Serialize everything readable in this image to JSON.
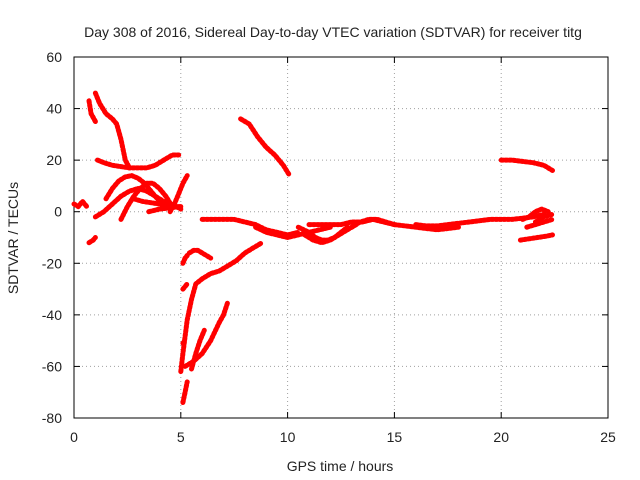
{
  "chart_data": {
    "type": "scatter",
    "title": "Day 308 of 2016, Sidereal Day-to-day VTEC variation (SDTVAR) for receiver titg",
    "xlabel": "GPS time / hours",
    "ylabel": "SDTVAR / TECUs",
    "xlim": [
      0,
      25
    ],
    "ylim": [
      -80,
      60
    ],
    "xticks": [
      0,
      5,
      10,
      15,
      20,
      25
    ],
    "yticks": [
      -80,
      -60,
      -40,
      -20,
      0,
      20,
      40,
      60
    ],
    "grid": true,
    "legend": "none",
    "marker_color": "#ff0000",
    "series": [
      {
        "x": [
          0.0,
          0.2,
          0.4,
          0.6
        ],
        "y": [
          3,
          2,
          4,
          2
        ]
      },
      {
        "x": [
          0.7,
          0.9,
          1.0
        ],
        "y": [
          -12,
          -11,
          -10
        ]
      },
      {
        "x": [
          0.7,
          0.8,
          1.0
        ],
        "y": [
          43,
          38,
          35
        ]
      },
      {
        "x": [
          1.0,
          1.2,
          1.5,
          1.8,
          2.0,
          2.2,
          2.4,
          2.6
        ],
        "y": [
          46,
          42,
          38,
          36,
          34,
          28,
          20,
          17
        ]
      },
      {
        "x": [
          1.1,
          1.4,
          1.8,
          2.2,
          2.6,
          3.0,
          3.4,
          3.8,
          4.2,
          4.6,
          4.9
        ],
        "y": [
          20,
          19,
          18,
          17.5,
          17,
          17,
          17,
          18,
          20,
          22,
          22
        ]
      },
      {
        "x": [
          1.0,
          1.4,
          1.8,
          2.2,
          2.6,
          3.0,
          3.4,
          3.8,
          4.2,
          4.6,
          5.0
        ],
        "y": [
          -2,
          0,
          3,
          6,
          8,
          9,
          8,
          6,
          4,
          2,
          2
        ]
      },
      {
        "x": [
          1.5,
          1.8,
          2.1,
          2.4,
          2.7,
          3.0,
          3.3,
          3.6,
          3.9,
          4.2,
          4.5
        ],
        "y": [
          5,
          9,
          12,
          13.5,
          14,
          13,
          11,
          8,
          5,
          3,
          1
        ]
      },
      {
        "x": [
          2.2,
          2.5,
          2.8,
          3.1,
          3.4,
          3.7,
          4.0,
          4.3,
          4.6
        ],
        "y": [
          -3,
          2,
          6,
          9,
          11,
          11,
          9,
          6,
          2
        ]
      },
      {
        "x": [
          2.8,
          3.2,
          3.6,
          4.0,
          4.4,
          4.8,
          5.0
        ],
        "y": [
          5,
          4,
          3.5,
          3,
          2.5,
          2,
          1
        ]
      },
      {
        "x": [
          3.5,
          4.0,
          4.5,
          5.0
        ],
        "y": [
          0,
          1,
          1.5,
          2
        ]
      },
      {
        "x": [
          4.5,
          4.7,
          4.9,
          5.1,
          5.3
        ],
        "y": [
          0,
          3,
          7,
          11,
          14
        ]
      },
      {
        "x": [
          5.1,
          5.2,
          5.3
        ],
        "y": [
          -20,
          -18,
          -17
        ]
      },
      {
        "x": [
          5.1,
          5.2,
          5.3
        ],
        "y": [
          -30,
          -29,
          -28
        ]
      },
      {
        "x": [
          5.1,
          5.2
        ],
        "y": [
          -51,
          -50
        ]
      },
      {
        "x": [
          5.1,
          5.2,
          5.3
        ],
        "y": [
          -74,
          -70,
          -66
        ]
      },
      {
        "x": [
          5.0,
          5.1,
          5.3,
          5.5,
          5.7,
          6.0,
          6.4,
          6.8,
          7.2,
          7.6,
          8.0,
          8.4,
          8.8
        ],
        "y": [
          -62,
          -55,
          -42,
          -34,
          -28,
          -26,
          -24,
          -23,
          -21,
          -19,
          -16,
          -14,
          -12
        ]
      },
      {
        "x": [
          5.2,
          5.6,
          6.0,
          6.4,
          6.8,
          7.0,
          7.2
        ],
        "y": [
          -60,
          -58,
          -55,
          -50,
          -43,
          -40,
          -35
        ]
      },
      {
        "x": [
          5.5,
          5.7,
          5.9,
          6.1
        ],
        "y": [
          -61,
          -55,
          -50,
          -46
        ]
      },
      {
        "x": [
          5.4,
          5.6,
          5.8,
          6.0,
          6.2,
          6.4
        ],
        "y": [
          -16,
          -15,
          -15,
          -16,
          -17,
          -18
        ]
      },
      {
        "x": [
          6.0,
          6.5,
          7.0,
          7.5,
          8.0,
          8.5,
          9.0,
          9.5,
          10.0,
          10.5
        ],
        "y": [
          -3,
          -3,
          -3,
          -3,
          -4,
          -5,
          -7,
          -8,
          -9,
          -8
        ]
      },
      {
        "x": [
          7.8,
          8.2,
          8.6,
          9.0,
          9.4,
          9.8,
          10.1
        ],
        "y": [
          36,
          34,
          29,
          25,
          22,
          18,
          14
        ]
      },
      {
        "x": [
          8.5,
          9.0,
          9.5,
          10.0,
          10.5,
          11.0,
          11.5,
          12.0
        ],
        "y": [
          -6,
          -8,
          -9,
          -10,
          -9,
          -8,
          -7,
          -6
        ]
      },
      {
        "x": [
          10.5,
          11.0,
          11.3,
          11.6,
          11.9,
          12.2,
          12.5,
          12.8
        ],
        "y": [
          -6,
          -8,
          -10,
          -11,
          -11,
          -10,
          -8,
          -6
        ]
      },
      {
        "x": [
          10.8,
          11.2,
          11.6,
          12.0,
          12.4,
          12.8,
          13.2
        ],
        "y": [
          -9,
          -11,
          -12,
          -11,
          -9,
          -7,
          -5
        ]
      },
      {
        "x": [
          11.0,
          11.5,
          12.0,
          12.5,
          13.0,
          13.5,
          14.0,
          14.5,
          15.0
        ],
        "y": [
          -5,
          -5,
          -5,
          -5,
          -4,
          -4,
          -3,
          -4,
          -5
        ]
      },
      {
        "x": [
          13.0,
          13.4,
          13.8,
          14.2,
          14.6,
          15.0
        ],
        "y": [
          -6,
          -4,
          -3,
          -3,
          -4,
          -5
        ]
      },
      {
        "x": [
          15.0,
          15.5,
          16.0,
          16.5,
          17.0,
          17.5,
          18.0
        ],
        "y": [
          -5,
          -5.5,
          -6,
          -6.5,
          -7,
          -6.5,
          -6
        ]
      },
      {
        "x": [
          16.0,
          16.5,
          17.0,
          17.5,
          18.0,
          18.5,
          19.0,
          19.5,
          20.0,
          20.5,
          21.0,
          21.5,
          22.0
        ],
        "y": [
          -5,
          -5.5,
          -5.5,
          -5,
          -4.5,
          -4,
          -3.5,
          -3,
          -3,
          -3,
          -2.5,
          -2,
          -1
        ]
      },
      {
        "x": [
          21.0,
          21.3,
          21.6,
          21.9,
          22.2
        ],
        "y": [
          -3,
          -2,
          0,
          1,
          0
        ]
      },
      {
        "x": [
          20.0,
          20.5,
          21.0,
          21.5,
          22.0,
          22.4
        ],
        "y": [
          20,
          20,
          19.5,
          19,
          18,
          16
        ]
      },
      {
        "x": [
          20.9,
          21.3,
          21.7,
          22.1,
          22.4
        ],
        "y": [
          -11,
          -10.5,
          -10,
          -9.5,
          -9
        ]
      },
      {
        "x": [
          21.2,
          21.6,
          22.0,
          22.4
        ],
        "y": [
          -6,
          -5,
          -4,
          -3
        ]
      },
      {
        "x": [
          21.6,
          22.0,
          22.4
        ],
        "y": [
          -4,
          -2,
          -1
        ]
      }
    ]
  }
}
